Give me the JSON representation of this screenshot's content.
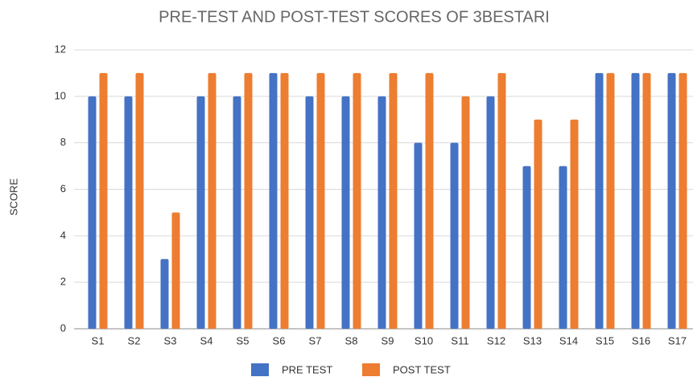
{
  "chart_data": {
    "type": "bar",
    "title": "PRE-TEST AND POST-TEST SCORES OF 3BESTARI",
    "y_label": "SCORE",
    "categories": [
      "S1",
      "S2",
      "S3",
      "S4",
      "S5",
      "S6",
      "S7",
      "S8",
      "S9",
      "S10",
      "S11",
      "S12",
      "S13",
      "S14",
      "S15",
      "S16",
      "S17"
    ],
    "series": [
      {
        "name": "PRE TEST",
        "color": "#4472c4",
        "values": [
          10,
          10,
          3,
          10,
          10,
          11,
          10,
          10,
          10,
          8,
          8,
          10,
          7,
          7,
          11,
          11,
          11
        ]
      },
      {
        "name": "POST TEST",
        "color": "#ed7d31",
        "values": [
          11,
          11,
          5,
          11,
          11,
          11,
          11,
          11,
          11,
          11,
          10,
          11,
          9,
          9,
          11,
          11,
          11
        ]
      }
    ],
    "ylim": [
      0,
      12
    ],
    "yticks": [
      0,
      2,
      4,
      6,
      8,
      10,
      12
    ],
    "grid": true,
    "legend": "bottom"
  }
}
